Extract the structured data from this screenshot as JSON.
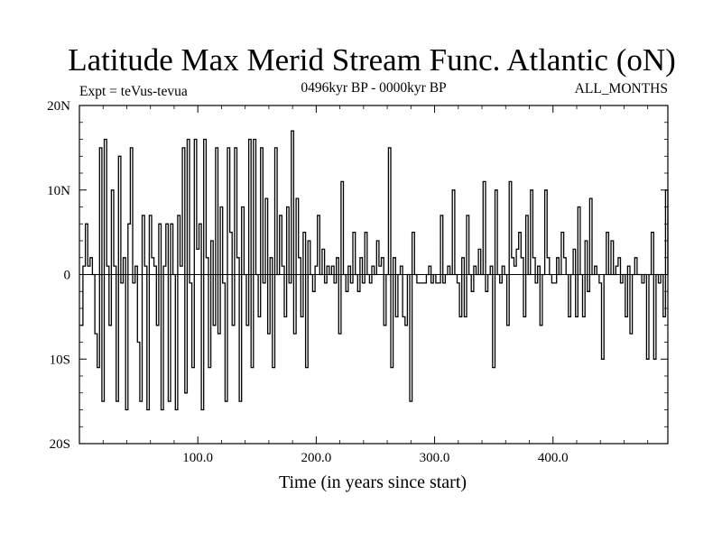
{
  "header": {
    "title": "Latitude Max Merid Stream Func. Atlantic (oN)",
    "experiment": "Expt = teVus-tevua",
    "period": "0496kyr BP - 0000kyr BP",
    "months": "ALL_MONTHS"
  },
  "chart_data": {
    "type": "line",
    "title": "Latitude Max Merid Stream Func. Atlantic (oN)",
    "xlabel": "Time (in years since start)",
    "ylabel": "",
    "xlim": [
      0,
      497
    ],
    "ylim": [
      -20,
      20
    ],
    "x_ticks": [
      {
        "value": 100,
        "label": "100.0"
      },
      {
        "value": 200,
        "label": "200.0"
      },
      {
        "value": 300,
        "label": "300.0"
      },
      {
        "value": 400,
        "label": "400.0"
      }
    ],
    "y_ticks": [
      {
        "value": 20,
        "label": "20N"
      },
      {
        "value": 10,
        "label": "10N"
      },
      {
        "value": 0,
        "label": "0"
      },
      {
        "value": -10,
        "label": "10S"
      },
      {
        "value": -20,
        "label": "20S"
      }
    ],
    "grid": false,
    "legend": "none",
    "line_color": "#000000",
    "series": [
      {
        "values": [
          [
            1,
            -6
          ],
          [
            3,
            1
          ],
          [
            5,
            6
          ],
          [
            7,
            1
          ],
          [
            9,
            2
          ],
          [
            11,
            0
          ],
          [
            13,
            -7
          ],
          [
            15,
            -11
          ],
          [
            17,
            15
          ],
          [
            19,
            -15
          ],
          [
            21,
            16
          ],
          [
            23,
            1
          ],
          [
            25,
            -6
          ],
          [
            27,
            10
          ],
          [
            29,
            1
          ],
          [
            31,
            -15
          ],
          [
            33,
            14
          ],
          [
            35,
            -1
          ],
          [
            37,
            2
          ],
          [
            39,
            -16
          ],
          [
            41,
            6
          ],
          [
            43,
            15
          ],
          [
            45,
            -1
          ],
          [
            47,
            1
          ],
          [
            49,
            -8
          ],
          [
            51,
            -15
          ],
          [
            53,
            7
          ],
          [
            55,
            1
          ],
          [
            57,
            -16
          ],
          [
            59,
            7
          ],
          [
            61,
            2
          ],
          [
            63,
            1
          ],
          [
            65,
            -6
          ],
          [
            67,
            6
          ],
          [
            69,
            -16
          ],
          [
            71,
            1
          ],
          [
            73,
            6
          ],
          [
            75,
            -15
          ],
          [
            77,
            6
          ],
          [
            79,
            0
          ],
          [
            81,
            -16
          ],
          [
            83,
            7
          ],
          [
            85,
            1
          ],
          [
            87,
            15
          ],
          [
            89,
            -14
          ],
          [
            91,
            16
          ],
          [
            93,
            -1
          ],
          [
            95,
            -11
          ],
          [
            97,
            16
          ],
          [
            99,
            3
          ],
          [
            101,
            6
          ],
          [
            103,
            -16
          ],
          [
            105,
            16
          ],
          [
            107,
            2
          ],
          [
            109,
            -11
          ],
          [
            111,
            4
          ],
          [
            113,
            -6
          ],
          [
            115,
            15
          ],
          [
            117,
            -7
          ],
          [
            119,
            8
          ],
          [
            121,
            -1
          ],
          [
            123,
            -15
          ],
          [
            125,
            15
          ],
          [
            127,
            5
          ],
          [
            129,
            -6
          ],
          [
            131,
            15
          ],
          [
            133,
            2
          ],
          [
            135,
            -15
          ],
          [
            137,
            8
          ],
          [
            139,
            0
          ],
          [
            141,
            -6
          ],
          [
            143,
            16
          ],
          [
            145,
            -11
          ],
          [
            147,
            16
          ],
          [
            149,
            0
          ],
          [
            151,
            -5
          ],
          [
            153,
            15
          ],
          [
            155,
            -1
          ],
          [
            157,
            9
          ],
          [
            159,
            -7
          ],
          [
            161,
            2
          ],
          [
            163,
            -11
          ],
          [
            165,
            15
          ],
          [
            167,
            0
          ],
          [
            169,
            7
          ],
          [
            171,
            1
          ],
          [
            173,
            -5
          ],
          [
            175,
            8
          ],
          [
            177,
            -1
          ],
          [
            179,
            17
          ],
          [
            181,
            -7
          ],
          [
            183,
            9
          ],
          [
            185,
            2
          ],
          [
            187,
            -5
          ],
          [
            189,
            5
          ],
          [
            191,
            -11
          ],
          [
            193,
            4
          ],
          [
            195,
            0
          ],
          [
            197,
            -2
          ],
          [
            199,
            1
          ],
          [
            201,
            7
          ],
          [
            203,
            0
          ],
          [
            205,
            3
          ],
          [
            207,
            -1
          ],
          [
            209,
            1
          ],
          [
            211,
            0
          ],
          [
            213,
            1
          ],
          [
            215,
            -1
          ],
          [
            217,
            2
          ],
          [
            219,
            -7
          ],
          [
            221,
            11
          ],
          [
            223,
            0
          ],
          [
            225,
            -2
          ],
          [
            227,
            1
          ],
          [
            229,
            -1
          ],
          [
            231,
            5
          ],
          [
            233,
            0
          ],
          [
            235,
            -2
          ],
          [
            237,
            2
          ],
          [
            239,
            -1
          ],
          [
            241,
            5
          ],
          [
            243,
            0
          ],
          [
            245,
            -1
          ],
          [
            247,
            1
          ],
          [
            249,
            0
          ],
          [
            251,
            4
          ],
          [
            253,
            1
          ],
          [
            255,
            2
          ],
          [
            257,
            -6
          ],
          [
            259,
            0
          ],
          [
            261,
            15
          ],
          [
            263,
            -11
          ],
          [
            265,
            2
          ],
          [
            267,
            -5
          ],
          [
            269,
            0
          ],
          [
            271,
            1
          ],
          [
            273,
            -5
          ],
          [
            275,
            -6
          ],
          [
            277,
            0
          ],
          [
            279,
            -15
          ],
          [
            281,
            5
          ],
          [
            283,
            0
          ],
          [
            285,
            -1
          ],
          [
            287,
            -1
          ],
          [
            289,
            -1
          ],
          [
            291,
            -1
          ],
          [
            293,
            0
          ],
          [
            295,
            1
          ],
          [
            297,
            -1
          ],
          [
            299,
            0
          ],
          [
            301,
            -1
          ],
          [
            303,
            -1
          ],
          [
            305,
            7
          ],
          [
            307,
            -1
          ],
          [
            309,
            0
          ],
          [
            311,
            1
          ],
          [
            313,
            0
          ],
          [
            315,
            10
          ],
          [
            317,
            0
          ],
          [
            319,
            -1
          ],
          [
            321,
            -5
          ],
          [
            323,
            2
          ],
          [
            325,
            -5
          ],
          [
            327,
            7
          ],
          [
            329,
            0
          ],
          [
            331,
            -2
          ],
          [
            333,
            1
          ],
          [
            335,
            0
          ],
          [
            337,
            3
          ],
          [
            339,
            0
          ],
          [
            341,
            11
          ],
          [
            343,
            -2
          ],
          [
            345,
            0
          ],
          [
            347,
            1
          ],
          [
            349,
            -11
          ],
          [
            351,
            10
          ],
          [
            353,
            0
          ],
          [
            355,
            -1
          ],
          [
            357,
            1
          ],
          [
            359,
            0
          ],
          [
            361,
            -6
          ],
          [
            363,
            11
          ],
          [
            365,
            2
          ],
          [
            367,
            1
          ],
          [
            369,
            3
          ],
          [
            371,
            5
          ],
          [
            373,
            2
          ],
          [
            375,
            -5
          ],
          [
            377,
            7
          ],
          [
            379,
            0
          ],
          [
            381,
            10
          ],
          [
            383,
            2
          ],
          [
            385,
            -1
          ],
          [
            387,
            1
          ],
          [
            389,
            -6
          ],
          [
            391,
            0
          ],
          [
            393,
            10
          ],
          [
            395,
            2
          ],
          [
            397,
            0
          ],
          [
            399,
            -1
          ],
          [
            401,
            -1
          ],
          [
            403,
            2
          ],
          [
            405,
            0
          ],
          [
            407,
            5
          ],
          [
            409,
            2
          ],
          [
            411,
            0
          ],
          [
            413,
            -5
          ],
          [
            415,
            0
          ],
          [
            417,
            3
          ],
          [
            419,
            -5
          ],
          [
            421,
            8
          ],
          [
            423,
            0
          ],
          [
            425,
            -5
          ],
          [
            427,
            4
          ],
          [
            429,
            -2
          ],
          [
            431,
            9
          ],
          [
            433,
            0
          ],
          [
            435,
            1
          ],
          [
            437,
            0
          ],
          [
            439,
            -1
          ],
          [
            441,
            -10
          ],
          [
            443,
            0
          ],
          [
            445,
            5
          ],
          [
            447,
            0
          ],
          [
            449,
            4
          ],
          [
            451,
            0
          ],
          [
            453,
            1
          ],
          [
            455,
            2
          ],
          [
            457,
            -1
          ],
          [
            459,
            0
          ],
          [
            461,
            -5
          ],
          [
            463,
            1
          ],
          [
            465,
            -7
          ],
          [
            467,
            0
          ],
          [
            469,
            2
          ],
          [
            471,
            0
          ],
          [
            473,
            0
          ],
          [
            475,
            -1
          ],
          [
            477,
            0
          ],
          [
            479,
            -10
          ],
          [
            481,
            0
          ],
          [
            483,
            5
          ],
          [
            485,
            -10
          ],
          [
            487,
            0
          ],
          [
            489,
            -1
          ],
          [
            491,
            0
          ],
          [
            493,
            -5
          ],
          [
            495,
            10
          ],
          [
            497,
            0
          ]
        ]
      }
    ]
  }
}
